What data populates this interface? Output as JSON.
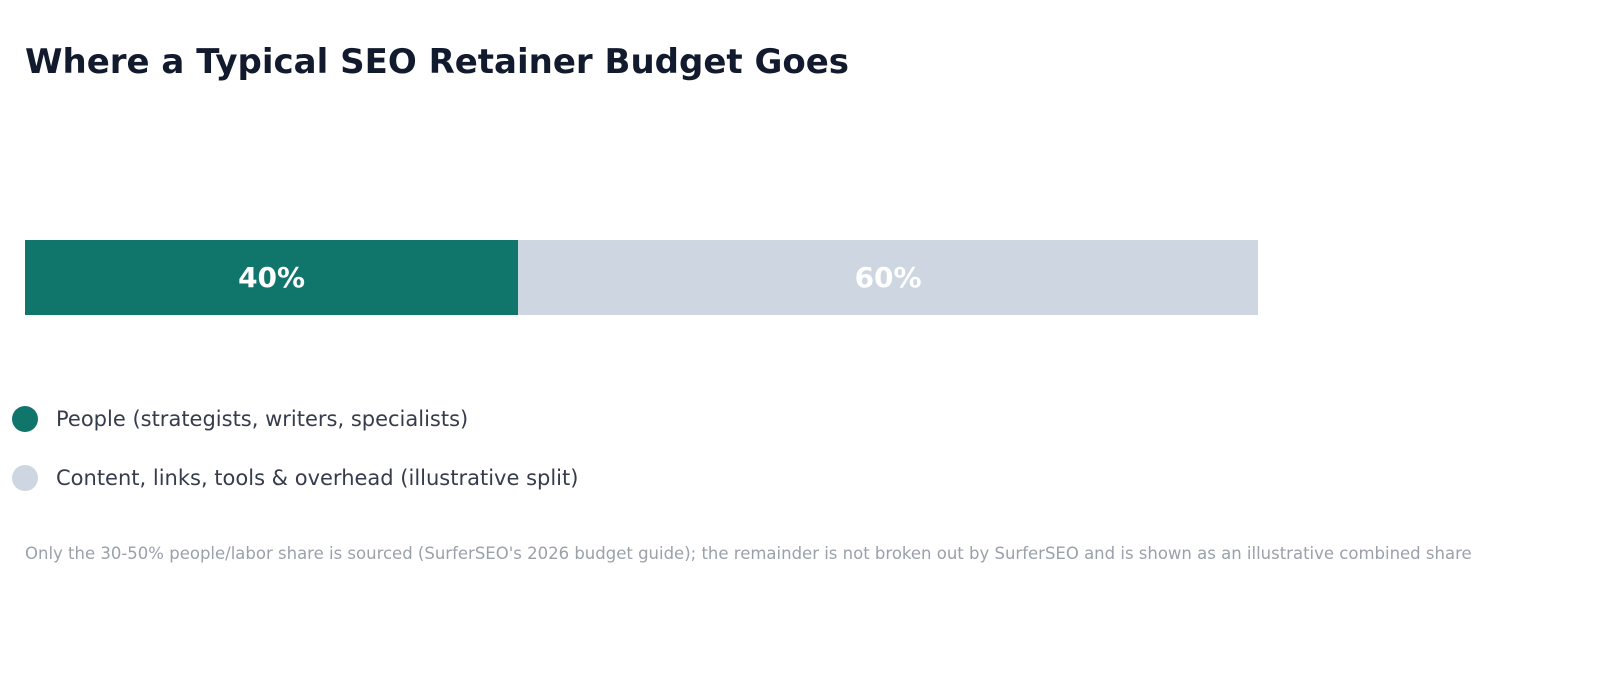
{
  "chart_data": {
    "type": "bar",
    "orientation": "horizontal-stacked",
    "title": "Where a Typical SEO Retainer Budget Goes",
    "xlim": [
      0,
      100
    ],
    "grid": false,
    "legend_placement": "bottom-left",
    "series": [
      {
        "name": "People (strategists, writers, specialists)",
        "value": 40,
        "label": "40%",
        "color": "#10766c"
      },
      {
        "name": "Content, links, tools & overhead (illustrative split)",
        "value": 60,
        "label": "60%",
        "color": "#cdd6e1"
      }
    ],
    "footnote": "Only the 30-50% people/labor share is sourced (SurferSEO's 2026 budget guide); the remainder is not broken out by SurferSEO and is shown as an illustrative combined share"
  }
}
